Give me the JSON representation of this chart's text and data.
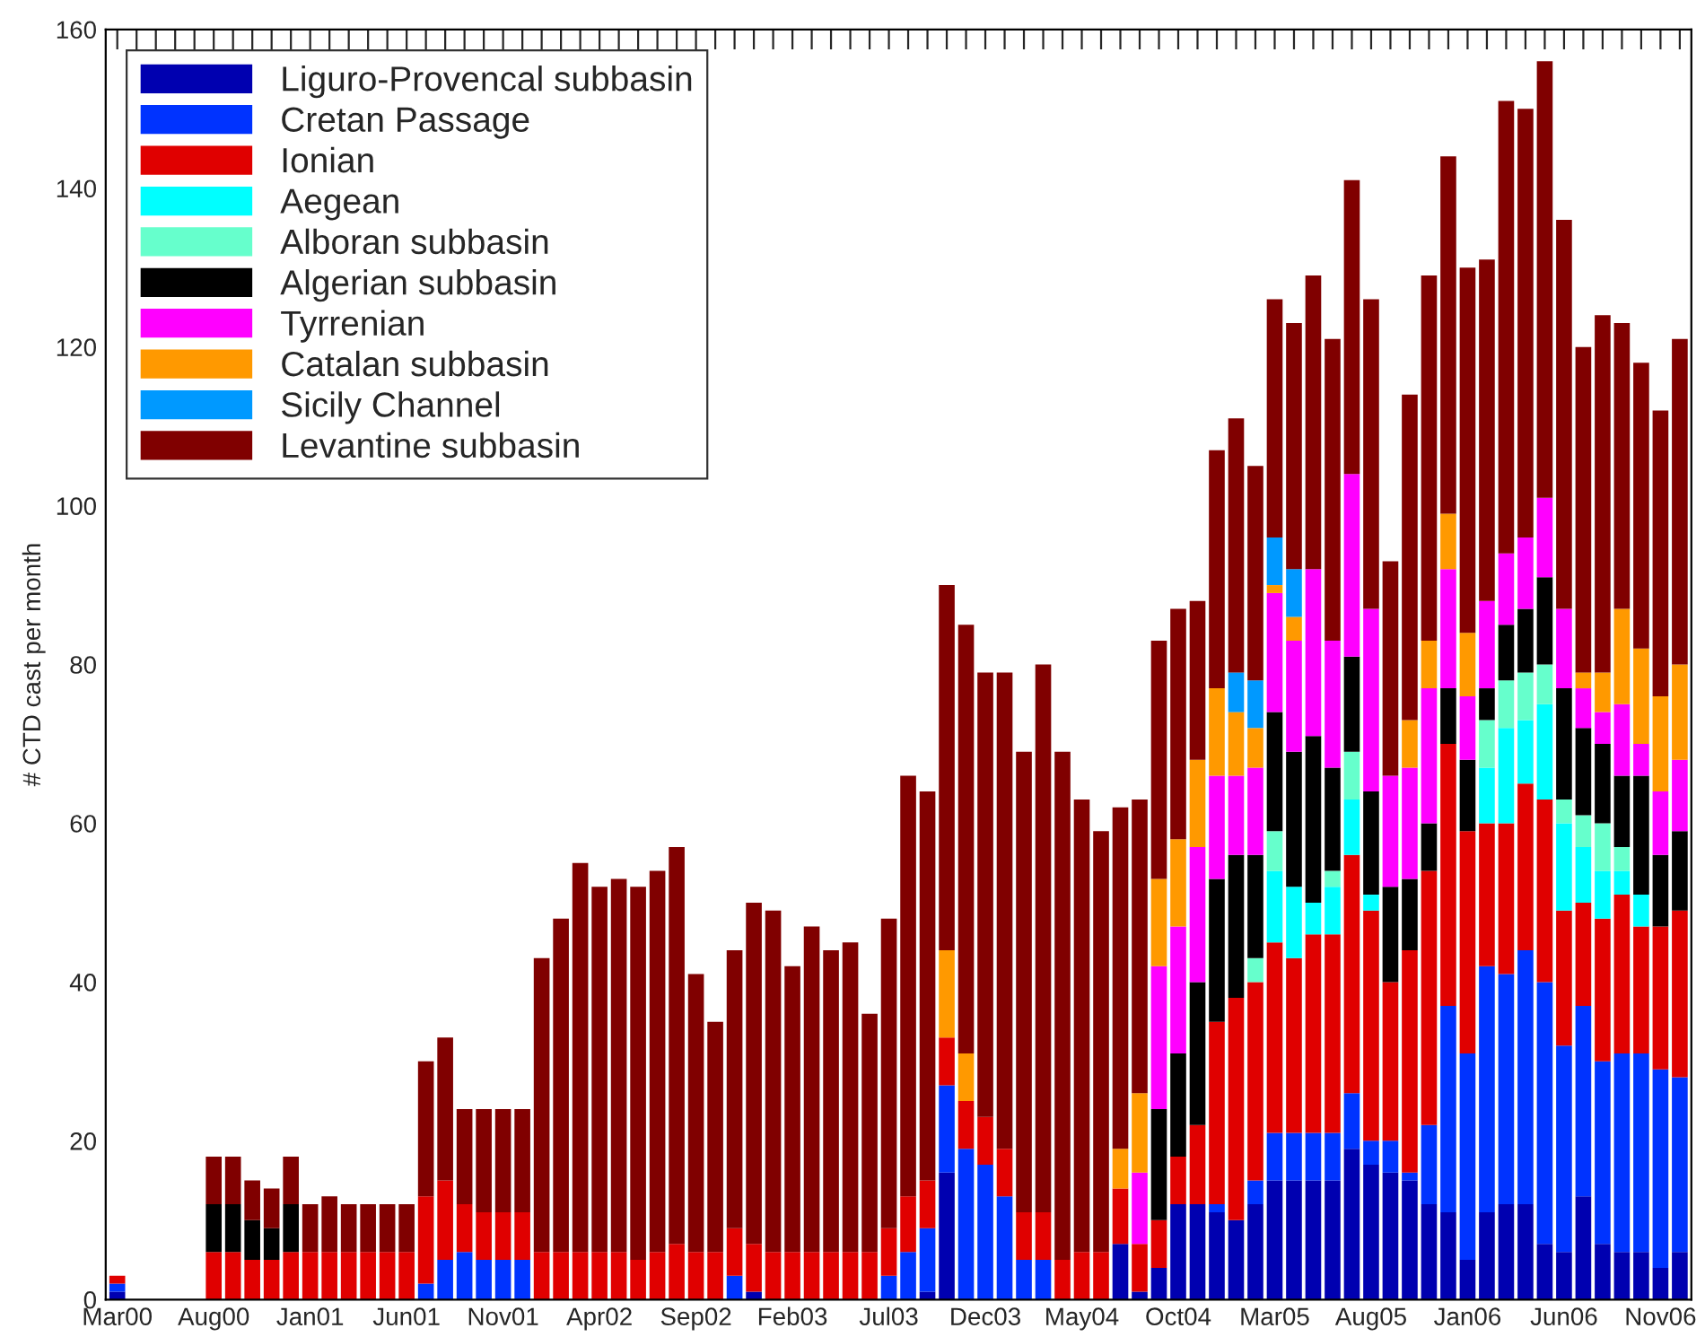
{
  "chart_data": {
    "type": "bar",
    "stacked": true,
    "ylabel": "# CTD cast per month",
    "categories": [
      "Mar00",
      null,
      null,
      null,
      null,
      "Aug00",
      null,
      null,
      null,
      null,
      "Jan01",
      null,
      null,
      null,
      null,
      "Jun01",
      null,
      null,
      null,
      null,
      "Nov01",
      null,
      null,
      null,
      null,
      "Apr02",
      null,
      null,
      null,
      null,
      "Sep02",
      null,
      null,
      null,
      null,
      "Feb03",
      null,
      null,
      null,
      null,
      "Jul03",
      null,
      null,
      null,
      null,
      "Dec03",
      null,
      null,
      null,
      null,
      "May04",
      null,
      null,
      null,
      null,
      "Oct04",
      null,
      null,
      null,
      null,
      "Mar05",
      null,
      null,
      null,
      null,
      "Aug05",
      null,
      null,
      null,
      null,
      "Jan06",
      null,
      null,
      null,
      null,
      "Jun06",
      null,
      null,
      null,
      null,
      "Nov06",
      null
    ],
    "ylim": [
      0,
      160
    ],
    "yticks": [
      0,
      20,
      40,
      60,
      80,
      100,
      120,
      140,
      160
    ],
    "grid": false,
    "legend": "top left",
    "series": [
      {
        "name": "Liguro-Provencal subbasin",
        "color": "#0000b0",
        "values": [
          1,
          0,
          0,
          0,
          0,
          0,
          0,
          0,
          0,
          0,
          0,
          0,
          0,
          0,
          0,
          0,
          0,
          0,
          0,
          0,
          0,
          0,
          0,
          0,
          0,
          0,
          0,
          0,
          0,
          0,
          0,
          0,
          0,
          1,
          0,
          0,
          0,
          0,
          0,
          0,
          0,
          0,
          1,
          16,
          0,
          0,
          0,
          0,
          0,
          0,
          0,
          0,
          7,
          1,
          4,
          12,
          12,
          11,
          10,
          12,
          15,
          15,
          15,
          15,
          19,
          17,
          16,
          15,
          12,
          11,
          5,
          11,
          12,
          12,
          7,
          6,
          13,
          7,
          6,
          6,
          4,
          6
        ]
      },
      {
        "name": "Cretan Passage",
        "color": "#0033ff",
        "values": [
          1,
          0,
          0,
          0,
          0,
          0,
          0,
          0,
          0,
          0,
          0,
          0,
          0,
          0,
          0,
          0,
          2,
          5,
          6,
          5,
          5,
          5,
          0,
          0,
          0,
          0,
          0,
          0,
          0,
          0,
          0,
          0,
          3,
          0,
          0,
          0,
          0,
          0,
          0,
          0,
          3,
          6,
          8,
          11,
          19,
          17,
          13,
          5,
          5,
          0,
          0,
          0,
          0,
          0,
          0,
          0,
          0,
          1,
          0,
          3,
          6,
          6,
          6,
          6,
          7,
          3,
          4,
          1,
          10,
          26,
          26,
          31,
          29,
          32,
          33,
          26,
          24,
          23,
          25,
          25,
          25,
          22
        ]
      },
      {
        "name": "Ionian",
        "color": "#e00000",
        "values": [
          1,
          0,
          0,
          0,
          0,
          6,
          6,
          5,
          5,
          6,
          6,
          6,
          6,
          6,
          6,
          6,
          11,
          10,
          6,
          6,
          6,
          6,
          6,
          6,
          6,
          6,
          6,
          5,
          6,
          7,
          6,
          6,
          6,
          6,
          6,
          6,
          6,
          6,
          6,
          6,
          6,
          7,
          6,
          6,
          6,
          6,
          6,
          6,
          6,
          5,
          6,
          6,
          7,
          6,
          6,
          6,
          10,
          23,
          28,
          25,
          24,
          22,
          25,
          25,
          30,
          29,
          20,
          28,
          32,
          33,
          28,
          18,
          19,
          21,
          23,
          17,
          13,
          18,
          20,
          16,
          18,
          21
        ]
      },
      {
        "name": "Aegean",
        "color": "#00ffff",
        "values": [
          0,
          0,
          0,
          0,
          0,
          0,
          0,
          0,
          0,
          0,
          0,
          0,
          0,
          0,
          0,
          0,
          0,
          0,
          0,
          0,
          0,
          0,
          0,
          0,
          0,
          0,
          0,
          0,
          0,
          0,
          0,
          0,
          0,
          0,
          0,
          0,
          0,
          0,
          0,
          0,
          0,
          0,
          0,
          0,
          0,
          0,
          0,
          0,
          0,
          0,
          0,
          0,
          0,
          0,
          0,
          0,
          0,
          0,
          0,
          0,
          9,
          9,
          4,
          6,
          7,
          2,
          0,
          0,
          0,
          0,
          0,
          7,
          12,
          8,
          12,
          11,
          7,
          6,
          3,
          4,
          0,
          0
        ]
      },
      {
        "name": "Alboran subbasin",
        "color": "#66ffcc",
        "values": [
          0,
          0,
          0,
          0,
          0,
          0,
          0,
          0,
          0,
          0,
          0,
          0,
          0,
          0,
          0,
          0,
          0,
          0,
          0,
          0,
          0,
          0,
          0,
          0,
          0,
          0,
          0,
          0,
          0,
          0,
          0,
          0,
          0,
          0,
          0,
          0,
          0,
          0,
          0,
          0,
          0,
          0,
          0,
          0,
          0,
          0,
          0,
          0,
          0,
          0,
          0,
          0,
          0,
          0,
          0,
          0,
          0,
          0,
          0,
          3,
          5,
          0,
          0,
          2,
          6,
          0,
          0,
          0,
          0,
          0,
          0,
          6,
          6,
          6,
          5,
          3,
          4,
          6,
          3,
          0,
          0,
          0
        ]
      },
      {
        "name": "Algerian subbasin",
        "color": "#000000",
        "values": [
          0,
          0,
          0,
          0,
          0,
          6,
          6,
          5,
          4,
          6,
          0,
          0,
          0,
          0,
          0,
          0,
          0,
          0,
          0,
          0,
          0,
          0,
          0,
          0,
          0,
          0,
          0,
          0,
          0,
          0,
          0,
          0,
          0,
          0,
          0,
          0,
          0,
          0,
          0,
          0,
          0,
          0,
          0,
          0,
          0,
          0,
          0,
          0,
          0,
          0,
          0,
          0,
          0,
          0,
          14,
          13,
          18,
          18,
          18,
          13,
          15,
          17,
          21,
          13,
          12,
          13,
          12,
          9,
          6,
          7,
          9,
          4,
          7,
          8,
          11,
          14,
          11,
          10,
          9,
          15,
          9,
          10
        ]
      },
      {
        "name": "Tyrrenian",
        "color": "#ff00ff",
        "values": [
          0,
          0,
          0,
          0,
          0,
          0,
          0,
          0,
          0,
          0,
          0,
          0,
          0,
          0,
          0,
          0,
          0,
          0,
          0,
          0,
          0,
          0,
          0,
          0,
          0,
          0,
          0,
          0,
          0,
          0,
          0,
          0,
          0,
          0,
          0,
          0,
          0,
          0,
          0,
          0,
          0,
          0,
          0,
          0,
          0,
          0,
          0,
          0,
          0,
          0,
          0,
          0,
          0,
          9,
          18,
          16,
          17,
          13,
          10,
          11,
          15,
          14,
          21,
          16,
          23,
          23,
          14,
          14,
          17,
          15,
          8,
          11,
          9,
          9,
          10,
          10,
          5,
          4,
          9,
          4,
          8,
          9
        ]
      },
      {
        "name": "Catalan subbasin",
        "color": "#ff9900",
        "values": [
          0,
          0,
          0,
          0,
          0,
          0,
          0,
          0,
          0,
          0,
          0,
          0,
          0,
          0,
          0,
          0,
          0,
          0,
          0,
          0,
          0,
          0,
          0,
          0,
          0,
          0,
          0,
          0,
          0,
          0,
          0,
          0,
          0,
          0,
          0,
          0,
          0,
          0,
          0,
          0,
          0,
          0,
          0,
          11,
          6,
          0,
          0,
          0,
          0,
          0,
          0,
          0,
          5,
          10,
          11,
          11,
          11,
          11,
          8,
          5,
          1,
          3,
          0,
          0,
          0,
          0,
          0,
          6,
          6,
          7,
          8,
          0,
          0,
          0,
          0,
          0,
          2,
          5,
          12,
          12,
          12,
          12
        ]
      },
      {
        "name": "Sicily Channel",
        "color": "#0099ff",
        "values": [
          0,
          0,
          0,
          0,
          0,
          0,
          0,
          0,
          0,
          0,
          0,
          0,
          0,
          0,
          0,
          0,
          0,
          0,
          0,
          0,
          0,
          0,
          0,
          0,
          0,
          0,
          0,
          0,
          0,
          0,
          0,
          0,
          0,
          0,
          0,
          0,
          0,
          0,
          0,
          0,
          0,
          0,
          0,
          0,
          0,
          0,
          0,
          0,
          0,
          0,
          0,
          0,
          0,
          0,
          0,
          0,
          0,
          0,
          5,
          6,
          6,
          6,
          0,
          0,
          0,
          0,
          0,
          0,
          0,
          0,
          0,
          0,
          0,
          0,
          0,
          0,
          0,
          0,
          0,
          0,
          0,
          0
        ]
      },
      {
        "name": "Levantine subbasin",
        "color": "#800000",
        "values": [
          0,
          0,
          0,
          0,
          0,
          6,
          6,
          5,
          5,
          6,
          6,
          7,
          6,
          6,
          6,
          6,
          17,
          18,
          12,
          13,
          13,
          13,
          37,
          42,
          49,
          46,
          47,
          47,
          48,
          50,
          35,
          29,
          35,
          43,
          43,
          36,
          41,
          38,
          39,
          30,
          39,
          53,
          49,
          46,
          54,
          56,
          60,
          58,
          69,
          64,
          57,
          53,
          43,
          37,
          30,
          29,
          20,
          30,
          32,
          27,
          30,
          31,
          37,
          38,
          37,
          39,
          27,
          41,
          46,
          45,
          46,
          43,
          57,
          54,
          55,
          49,
          41,
          45,
          36,
          36,
          36,
          41
        ]
      }
    ]
  }
}
